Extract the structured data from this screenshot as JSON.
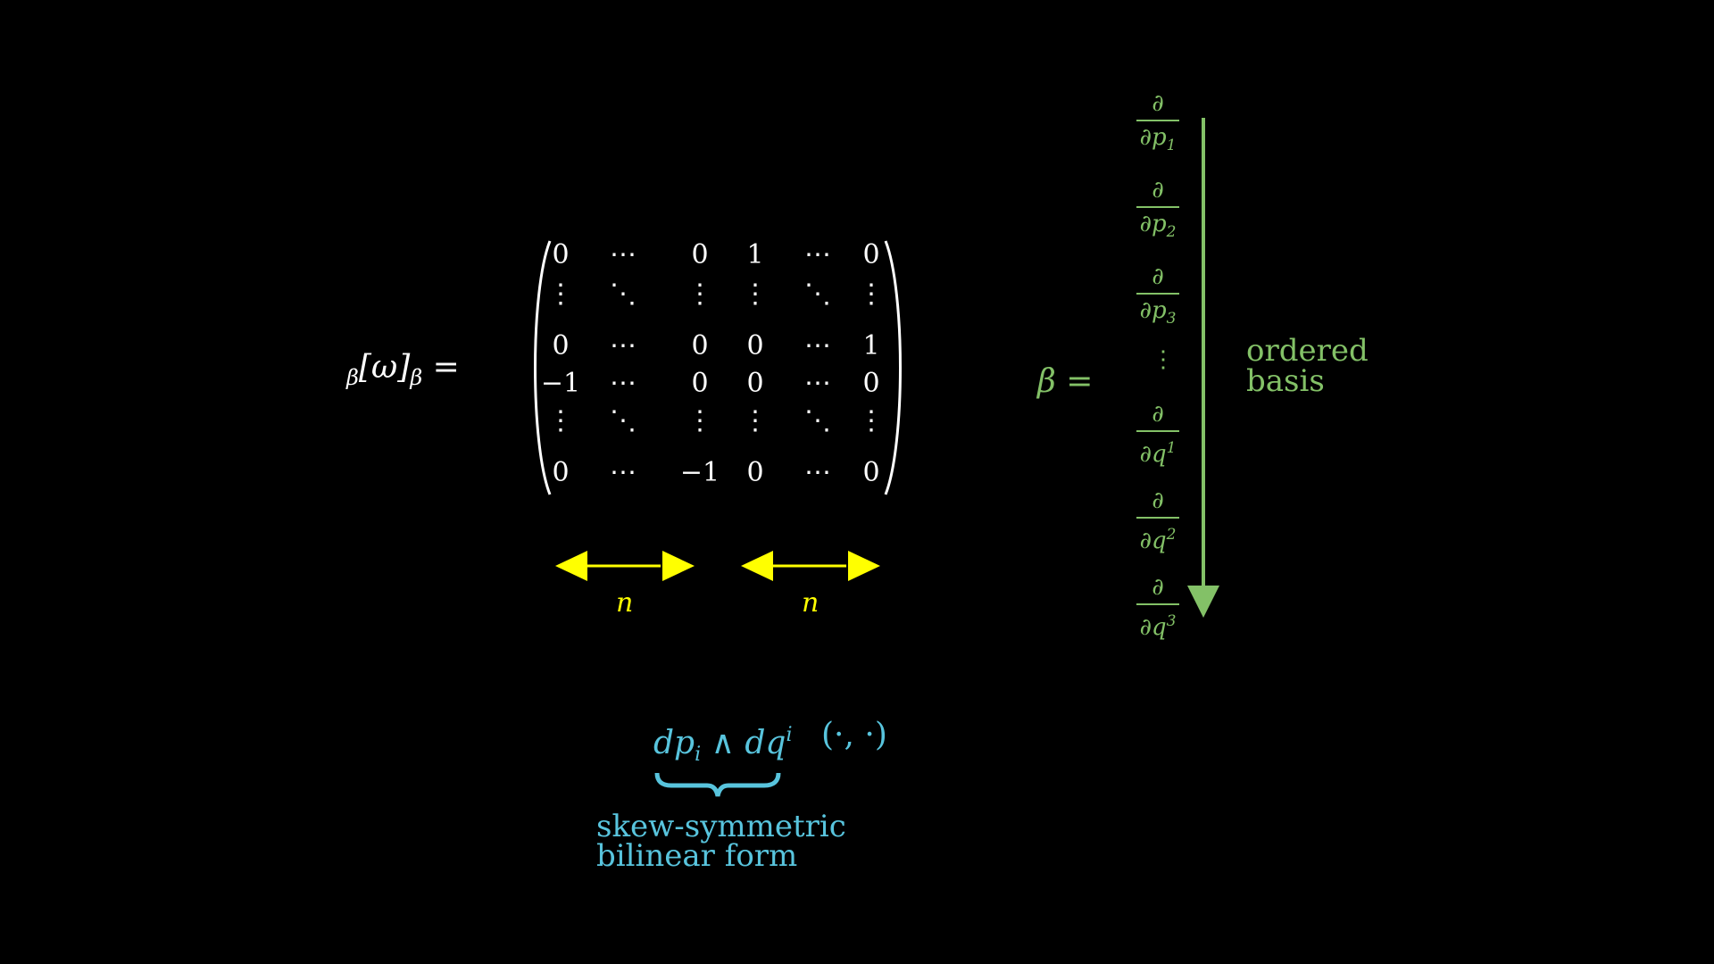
{
  "lhs": {
    "sub_left": "β",
    "omega": "[ω]",
    "sub_right": "β",
    "equals": "="
  },
  "matrix": {
    "rows": [
      [
        "0",
        "⋯",
        "0",
        "1",
        "⋯",
        "0"
      ],
      [
        "⋮",
        "⋱",
        "⋮",
        "⋮",
        "⋱",
        "⋮"
      ],
      [
        "0",
        "⋯",
        "0",
        "0",
        "⋯",
        "1"
      ],
      [
        "−1",
        "⋯",
        "0",
        "0",
        "⋯",
        "0"
      ],
      [
        "⋮",
        "⋱",
        "⋮",
        "⋮",
        "⋱",
        "⋮"
      ],
      [
        "0",
        "⋯",
        "−1",
        "0",
        "⋯",
        "0"
      ]
    ]
  },
  "arrows": {
    "left_label": "n",
    "right_label": "n",
    "color": "#ffff00"
  },
  "basis": {
    "beta_equals": "β =",
    "numerator": "∂",
    "items": [
      {
        "den_main": "∂p",
        "sub": "1",
        "sup": ""
      },
      {
        "den_main": "∂p",
        "sub": "2",
        "sup": ""
      },
      {
        "den_main": "∂p",
        "sub": "3",
        "sup": ""
      },
      {
        "den_main": "∂q",
        "sub": "",
        "sup": "1"
      },
      {
        "den_main": "∂q",
        "sub": "",
        "sup": "2"
      },
      {
        "den_main": "∂q",
        "sub": "",
        "sup": "3"
      }
    ],
    "vdots": "⋮",
    "label_line1": "ordered",
    "label_line2": "basis",
    "color": "#83c167"
  },
  "form": {
    "dp": "dp",
    "dp_sub": "i",
    "wedge": " ∧ dq",
    "dq_sup": "i",
    "pair": "(·, ·)",
    "label_line1": "skew-symmetric",
    "label_line2": "bilinear form",
    "color": "#58c4dd"
  },
  "colors": {
    "background": "#000000",
    "text": "#ffffff"
  }
}
